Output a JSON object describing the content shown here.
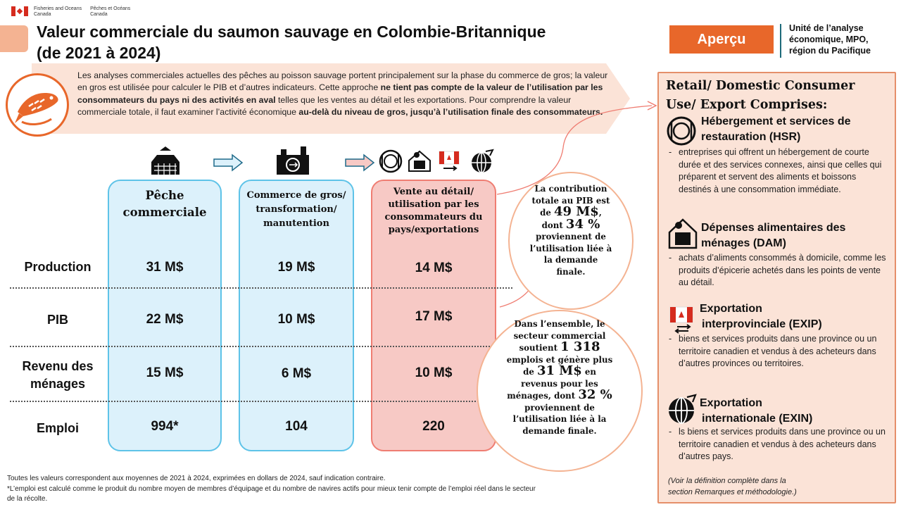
{
  "header": {
    "dept_en_1": "Fisheries and Oceans",
    "dept_en_2": "Canada",
    "dept_fr_1": "Pêches et Océans",
    "dept_fr_2": "Canada",
    "title_line1": "Valeur commerciale du saumon sauvage en Colombie-Britannique",
    "title_line2": "(de 2021 à 2024)",
    "badge": "Aperçu",
    "unit_l1": "Unité de l’analyse",
    "unit_l2": "économique, MPO,",
    "unit_l3": "région du Pacifique"
  },
  "intro": {
    "p1": "Les analyses commerciales actuelles des pêches au poisson sauvage portent principalement sur la phase du commerce de gros; la valeur en gros est utilisée pour calculer le PIB et d’autres indicateurs. Cette approche ",
    "b1": "ne tient pas compte de la valeur de l’utilisation par les consommateurs du pays ni des activités en aval",
    "p2": " telles que les ventes au détail et les exportations. Pour comprendre la valeur commerciale totale, il faut examiner l’activité économique ",
    "b2": "au-delà du niveau de gros, jusqu’à l’utilisation finale des consommateurs."
  },
  "columns": {
    "c1_l1": "Pêche",
    "c1_l2": "commerciale",
    "c2_l1": "Commerce de gros/",
    "c2_l2": "transformation/",
    "c2_l3": "manutention",
    "c3_l1": "Vente au détail/",
    "c3_l2": "utilisation par les",
    "c3_l3": "consommateurs du",
    "c3_l4": "pays/exportations"
  },
  "rows": {
    "production": "Production",
    "pib": "PIB",
    "revenu_l1": "Revenu des",
    "revenu_l2": "ménages",
    "emploi": "Emploi"
  },
  "values": {
    "prod": [
      "31 M$",
      "19 M$",
      "14 M$"
    ],
    "pib": [
      "22 M$",
      "10 M$",
      "17 M$"
    ],
    "revenu": [
      "15 M$",
      "6 M$",
      "10 M$"
    ],
    "emploi": [
      "994*",
      "104",
      "220"
    ]
  },
  "bubble1": {
    "l1": "La contribution",
    "l2": "totale au PIB est",
    "l3a": "de ",
    "l3b": "49 M$",
    "l3c": ",",
    "l4a": "dont ",
    "l4b": "34 %",
    "l5": "proviennent de",
    "l6": "l’utilisation liée à",
    "l7": "la demande",
    "l8": "finale."
  },
  "bubble2": {
    "l1": "Dans l’ensemble, le",
    "l2": "secteur commercial",
    "l3a": "soutient ",
    "l3b": "1 318",
    "l4": "emplois et génère plus",
    "l5a": "de ",
    "l5b": "31 M$",
    "l5c": " en",
    "l6": "revenus pour les",
    "l7a": "ménages, dont ",
    "l7b": "32 %",
    "l8": "proviennent de",
    "l9": "l’utilisation liée à la",
    "l10": "demande finale."
  },
  "panel": {
    "h1": "Retail/ Domestic Consumer",
    "h2": "Use/ Export Comprises:",
    "s1_h1": "Hébergement et services de",
    "s1_h2": "restauration (HSR)",
    "s1_t": "entreprises qui offrent un hébergement de courte durée et des services connexes, ainsi que celles qui préparent et servent des aliments et boissons destinés à une consommation immédiate.",
    "s2_h1": "Dépenses alimentaires des",
    "s2_h2": "ménages (DAM)",
    "s2_t": "achats d’aliments consommés à domicile, comme les produits d’épicerie achetés dans les points de vente au détail.",
    "s3_h1": "Exportation",
    "s3_h2": "interprovinciale (EXIP)",
    "s3_t": "biens et services produits dans une province ou un territoire canadien et vendus à des acheteurs dans d’autres provinces ou territoires.",
    "s4_h1": "Exportation",
    "s4_h2": "internationale (EXIN)",
    "s4_t": "ls biens et services produits dans une province ou un territoire canadien et vendus à des acheteurs dans d’autres pays.",
    "dash": "-",
    "note_l1": "(Voir la définition complète dans la",
    "note_l2": "section Remarques et méthodologie.)"
  },
  "footer": {
    "l1": "Toutes les valeurs correspondent aux moyennes de 2021 à 2024, exprimées en dollars de 2024, sauf indication contraire.",
    "l2": "*L’emploi est calculé comme le produit du nombre moyen de membres d’équipage et du nombre de navires actifs pour mieux tenir compte de l’emploi réel dans le secteur",
    "l3": "de la récolte."
  },
  "colors": {
    "orange": "#e8672a",
    "peach": "#fbe3d7",
    "blue_fill": "#dcf1fb",
    "blue_border": "#5ec3e8",
    "red_fill": "#f7c9c5",
    "red_border": "#ef7d72"
  }
}
